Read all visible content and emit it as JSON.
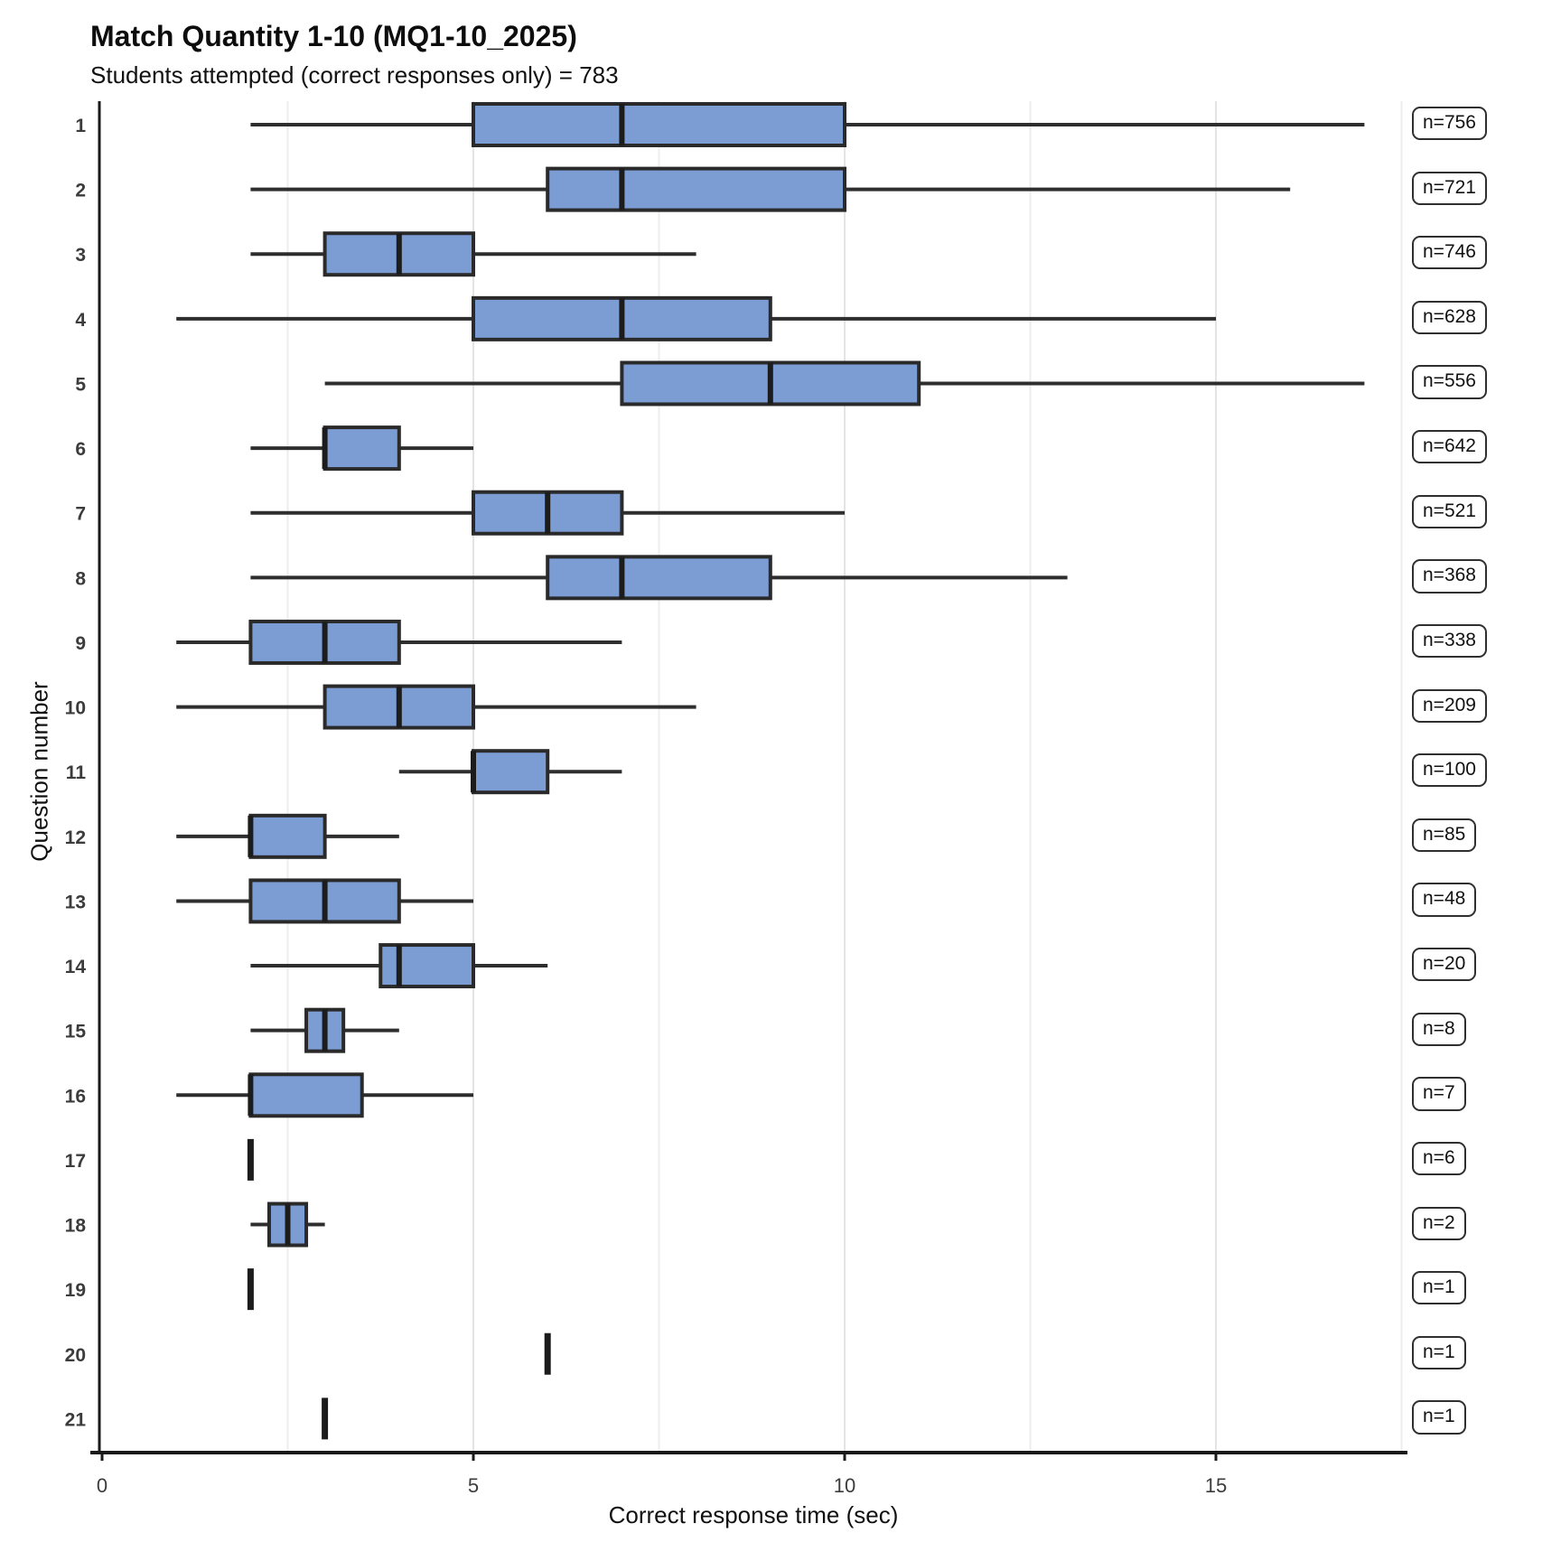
{
  "chart_data": {
    "type": "boxplot",
    "orientation": "horizontal",
    "title": "Match Quantity 1-10 (MQ1-10_2025)",
    "subtitle": "Students attempted (correct responses only) = 783",
    "xlabel": "Correct response time (sec)",
    "ylabel": "Question number",
    "x_ticks": [
      0,
      5,
      10,
      15
    ],
    "x_gridlines": [
      2.5,
      5,
      7.5,
      10,
      12.5,
      15,
      17.5
    ],
    "xlim": [
      0,
      17.5
    ],
    "categories": [
      "1",
      "2",
      "3",
      "4",
      "5",
      "6",
      "7",
      "8",
      "9",
      "10",
      "11",
      "12",
      "13",
      "14",
      "15",
      "16",
      "17",
      "18",
      "19",
      "20",
      "21"
    ],
    "rows": [
      {
        "question": "1",
        "n": 756,
        "n_label": "n=756",
        "min": 2,
        "q1": 5,
        "median": 7,
        "q3": 10,
        "max": 17
      },
      {
        "question": "2",
        "n": 721,
        "n_label": "n=721",
        "min": 2,
        "q1": 6,
        "median": 7,
        "q3": 10,
        "max": 16
      },
      {
        "question": "3",
        "n": 746,
        "n_label": "n=746",
        "min": 2,
        "q1": 3,
        "median": 4,
        "q3": 5,
        "max": 8
      },
      {
        "question": "4",
        "n": 628,
        "n_label": "n=628",
        "min": 1,
        "q1": 5,
        "median": 7,
        "q3": 9,
        "max": 15
      },
      {
        "question": "5",
        "n": 556,
        "n_label": "n=556",
        "min": 3,
        "q1": 7,
        "median": 9,
        "q3": 11,
        "max": 17
      },
      {
        "question": "6",
        "n": 642,
        "n_label": "n=642",
        "min": 2,
        "q1": 3,
        "median": 3,
        "q3": 4,
        "max": 5
      },
      {
        "question": "7",
        "n": 521,
        "n_label": "n=521",
        "min": 2,
        "q1": 5,
        "median": 6,
        "q3": 7,
        "max": 10
      },
      {
        "question": "8",
        "n": 368,
        "n_label": "n=368",
        "min": 2,
        "q1": 6,
        "median": 7,
        "q3": 9,
        "max": 13
      },
      {
        "question": "9",
        "n": 338,
        "n_label": "n=338",
        "min": 1,
        "q1": 2,
        "median": 3,
        "q3": 4,
        "max": 7
      },
      {
        "question": "10",
        "n": 209,
        "n_label": "n=209",
        "min": 1,
        "q1": 3,
        "median": 4,
        "q3": 5,
        "max": 8
      },
      {
        "question": "11",
        "n": 100,
        "n_label": "n=100",
        "min": 4,
        "q1": 5,
        "median": 5,
        "q3": 6,
        "max": 7
      },
      {
        "question": "12",
        "n": 85,
        "n_label": "n=85",
        "min": 1,
        "q1": 2,
        "median": 2,
        "q3": 3,
        "max": 4
      },
      {
        "question": "13",
        "n": 48,
        "n_label": "n=48",
        "min": 1,
        "q1": 2,
        "median": 3,
        "q3": 4,
        "max": 5
      },
      {
        "question": "14",
        "n": 20,
        "n_label": "n=20",
        "min": 2,
        "q1": 3.75,
        "median": 4,
        "q3": 5,
        "max": 6
      },
      {
        "question": "15",
        "n": 8,
        "n_label": "n=8",
        "min": 2,
        "q1": 2.75,
        "median": 3,
        "q3": 3.25,
        "max": 4
      },
      {
        "question": "16",
        "n": 7,
        "n_label": "n=7",
        "min": 1,
        "q1": 2,
        "median": 2,
        "q3": 3.5,
        "max": 5
      },
      {
        "question": "17",
        "n": 6,
        "n_label": "n=6",
        "min": 2,
        "q1": 2,
        "median": 2,
        "q3": 2,
        "max": 2
      },
      {
        "question": "18",
        "n": 2,
        "n_label": "n=2",
        "min": 2,
        "q1": 2.25,
        "median": 2.5,
        "q3": 2.75,
        "max": 3
      },
      {
        "question": "19",
        "n": 1,
        "n_label": "n=1",
        "min": 2,
        "q1": 2,
        "median": 2,
        "q3": 2,
        "max": 2
      },
      {
        "question": "20",
        "n": 1,
        "n_label": "n=1",
        "min": 6,
        "q1": 6,
        "median": 6,
        "q3": 6,
        "max": 6
      },
      {
        "question": "21",
        "n": 1,
        "n_label": "n=1",
        "min": 3,
        "q1": 3,
        "median": 3,
        "q3": 3,
        "max": 3
      }
    ],
    "colors": {
      "box_fill": "#7c9cd4",
      "box_border": "#2a2a2a",
      "median": "#1c1c1c",
      "whisker": "#2e2e2e",
      "gridline_major": "#e4e4e4",
      "gridline_minor": "#ededed",
      "axis": "#1a1a1a",
      "tick_text": "#3c3c3c"
    },
    "legend": null,
    "grid": true
  }
}
